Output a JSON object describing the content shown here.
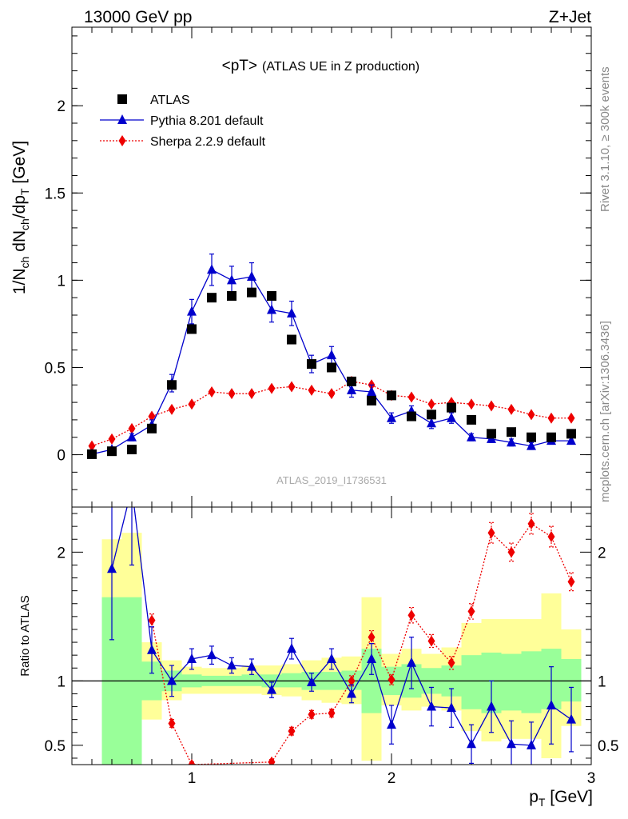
{
  "header": {
    "energy_label": "13000 GeV pp",
    "process_label": "Z+Jet"
  },
  "side_labels": {
    "rivet": "Rivet 3.1.10, ≥ 300k events",
    "mcplots": "mcplots.cern.ch [arXiv:1306.3436]"
  },
  "colors": {
    "atlas": "#000000",
    "pythia": "#0000cc",
    "sherpa": "#ee0000",
    "band_inner": "#99ff99",
    "band_outer": "#ffff99"
  },
  "chart_data": [
    {
      "type": "scatter",
      "title": "<pT>",
      "subtitle": "(ATLAS UE in Z production)",
      "watermark": "ATLAS_2019_I1736531",
      "ylabel": {
        "main": "1/N",
        "sub1": "ch",
        "mid1": " dN",
        "sub2": "ch",
        "mid2": "/dp",
        "sub3": "T",
        "unit": " [GeV]"
      },
      "xlim": [
        0.4,
        3.0
      ],
      "ylim": [
        -0.3,
        2.45
      ],
      "yticks": [
        0,
        0.5,
        1,
        1.5,
        2
      ],
      "ytick_labels": [
        "0",
        "0.5",
        "1",
        "1.5",
        "2"
      ],
      "legend_position": "top-left",
      "x": [
        0.5,
        0.6,
        0.7,
        0.8,
        0.9,
        1.0,
        1.1,
        1.2,
        1.3,
        1.4,
        1.5,
        1.6,
        1.7,
        1.8,
        1.9,
        2.0,
        2.1,
        2.2,
        2.3,
        2.4,
        2.5,
        2.6,
        2.7,
        2.8,
        2.9
      ],
      "series": [
        {
          "name": "ATLAS",
          "marker": "square",
          "values": [
            0.003,
            0.02,
            0.03,
            0.15,
            0.4,
            0.72,
            0.9,
            0.91,
            0.93,
            0.91,
            0.66,
            0.52,
            0.5,
            0.42,
            0.31,
            0.34,
            0.22,
            0.23,
            0.27,
            0.2,
            0.12,
            0.13,
            0.1,
            0.1,
            0.12
          ]
        },
        {
          "name": "Pythia 8.201 default",
          "marker": "triangle",
          "line": "solid",
          "values": [
            0.003,
            0.03,
            0.1,
            0.17,
            0.41,
            0.82,
            1.06,
            1.0,
            1.02,
            0.83,
            0.81,
            0.52,
            0.57,
            0.37,
            0.36,
            0.21,
            0.25,
            0.18,
            0.21,
            0.1,
            0.09,
            0.07,
            0.05,
            0.08,
            0.08
          ],
          "errors": [
            0.005,
            0.01,
            0.02,
            0.03,
            0.05,
            0.07,
            0.09,
            0.08,
            0.08,
            0.07,
            0.07,
            0.05,
            0.05,
            0.04,
            0.04,
            0.03,
            0.03,
            0.03,
            0.03,
            0.02,
            0.02,
            0.02,
            0.02,
            0.02,
            0.02
          ]
        },
        {
          "name": "Sherpa 2.2.9 default",
          "marker": "diamond",
          "line": "dotted",
          "values": [
            0.05,
            0.09,
            0.15,
            0.22,
            0.26,
            0.29,
            0.36,
            0.35,
            0.35,
            0.38,
            0.39,
            0.37,
            0.35,
            0.42,
            0.4,
            0.34,
            0.33,
            0.29,
            0.3,
            0.29,
            0.28,
            0.26,
            0.23,
            0.21,
            0.21
          ],
          "errors": [
            0.005,
            0.01,
            0.01,
            0.01,
            0.01,
            0.01,
            0.01,
            0.01,
            0.01,
            0.01,
            0.01,
            0.01,
            0.01,
            0.01,
            0.01,
            0.01,
            0.01,
            0.01,
            0.01,
            0.01,
            0.01,
            0.01,
            0.01,
            0.01,
            0.01
          ]
        }
      ]
    },
    {
      "type": "line",
      "ylabel": "Ratio to ATLAS",
      "xlabel": {
        "main": "p",
        "sub": "T",
        "unit": " [GeV]"
      },
      "xlim": [
        0.4,
        3.0
      ],
      "ylim": [
        0.35,
        2.35
      ],
      "xticks": [
        1,
        2,
        3
      ],
      "xtick_labels": [
        "1",
        "2",
        "3"
      ],
      "yticks": [
        0.5,
        1,
        2
      ],
      "ytick_labels": [
        "0.5",
        "1",
        "2"
      ],
      "reference_line": 1,
      "bin_edges": [
        0.55,
        0.65,
        0.75,
        0.85,
        0.95,
        1.05,
        1.15,
        1.25,
        1.35,
        1.45,
        1.55,
        1.65,
        1.75,
        1.85,
        1.95,
        2.05,
        2.15,
        2.25,
        2.35,
        2.45,
        2.55,
        2.65,
        2.75,
        2.85,
        2.95
      ],
      "band_inner": {
        "lo": [
          0.05,
          0.05,
          0.85,
          0.92,
          0.95,
          0.96,
          0.96,
          0.96,
          0.95,
          0.95,
          0.93,
          0.93,
          0.93,
          0.75,
          0.89,
          0.87,
          0.9,
          0.88,
          0.78,
          0.75,
          0.77,
          0.75,
          0.78,
          0.84
        ],
        "hi": [
          1.65,
          1.65,
          1.15,
          1.08,
          1.05,
          1.04,
          1.04,
          1.05,
          1.05,
          1.06,
          1.07,
          1.07,
          1.08,
          1.25,
          1.11,
          1.13,
          1.1,
          1.12,
          1.2,
          1.22,
          1.21,
          1.23,
          1.25,
          1.17
        ]
      },
      "band_outer": {
        "lo": [
          0.05,
          0.05,
          0.7,
          0.85,
          0.9,
          0.9,
          0.9,
          0.9,
          0.89,
          0.88,
          0.85,
          0.83,
          0.82,
          0.38,
          0.81,
          0.77,
          0.8,
          0.77,
          0.61,
          0.53,
          0.55,
          0.55,
          0.4,
          0.65
        ],
        "hi": [
          2.1,
          2.15,
          1.3,
          1.16,
          1.11,
          1.1,
          1.1,
          1.12,
          1.12,
          1.13,
          1.16,
          1.18,
          1.19,
          1.65,
          1.21,
          1.25,
          1.21,
          1.26,
          1.45,
          1.48,
          1.48,
          1.48,
          1.68,
          1.4
        ]
      },
      "series": [
        {
          "name": "Pythia 8.201 default",
          "marker": "triangle",
          "line": "solid",
          "x": [
            0.6,
            0.7,
            0.8,
            0.9,
            1.0,
            1.1,
            1.2,
            1.3,
            1.4,
            1.5,
            1.6,
            1.7,
            1.8,
            1.9,
            2.0,
            2.1,
            2.2,
            2.3,
            2.4,
            2.5,
            2.6,
            2.7,
            2.8,
            2.9
          ],
          "values": [
            1.87,
            2.5,
            1.24,
            1.0,
            1.17,
            1.2,
            1.12,
            1.11,
            0.93,
            1.25,
            0.99,
            1.17,
            0.9,
            1.17,
            0.66,
            1.14,
            0.8,
            0.79,
            0.51,
            0.8,
            0.51,
            0.5,
            0.81,
            0.7
          ],
          "errors": [
            0.55,
            0.6,
            0.18,
            0.12,
            0.08,
            0.07,
            0.06,
            0.06,
            0.06,
            0.08,
            0.07,
            0.08,
            0.07,
            0.12,
            0.15,
            0.2,
            0.15,
            0.15,
            0.15,
            0.2,
            0.18,
            0.18,
            0.3,
            0.25
          ]
        },
        {
          "name": "Sherpa 2.2.9 default",
          "marker": "diamond",
          "line": "dotted",
          "x": [
            0.8,
            0.9,
            1.0,
            1.4,
            1.5,
            1.6,
            1.7,
            1.8,
            1.9,
            2.0,
            2.1,
            2.2,
            2.3,
            2.4,
            2.5,
            2.6,
            2.7,
            2.8,
            2.9
          ],
          "values": [
            1.47,
            0.67,
            0.35,
            0.37,
            0.61,
            0.74,
            0.75,
            1.0,
            1.34,
            1.01,
            1.51,
            1.31,
            1.14,
            1.54,
            2.15,
            2.0,
            2.22,
            2.12,
            1.77
          ],
          "errors": [
            0.05,
            0.03,
            0.02,
            0.02,
            0.03,
            0.03,
            0.03,
            0.04,
            0.05,
            0.04,
            0.06,
            0.05,
            0.05,
            0.06,
            0.08,
            0.07,
            0.08,
            0.08,
            0.07
          ]
        }
      ]
    }
  ]
}
